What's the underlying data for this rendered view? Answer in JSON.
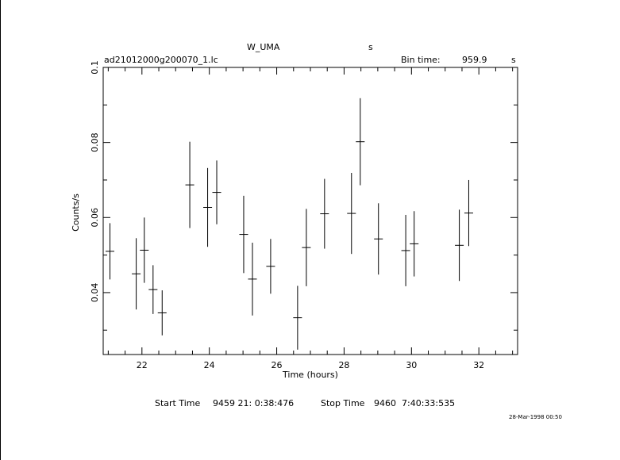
{
  "header": {
    "object": "W_UMA",
    "object_unit": "s",
    "filename": "ad21012000g200070_1.lc",
    "bin_time_label": "Bin time:",
    "bin_time_value": "959.9",
    "bin_time_unit": "s"
  },
  "footer": {
    "start_label": "Start Time",
    "start_value": "9459 21: 0:38:476",
    "stop_label": "Stop Time",
    "stop_value": "9460  7:40:33:535",
    "date_stamp": "28-Mar-1998 00:50"
  },
  "chart_data": {
    "type": "scatter",
    "xlabel": "Time (hours)",
    "ylabel": "Counts/s",
    "xlim": [
      20.85,
      33.15
    ],
    "ylim": [
      0.0235,
      0.1
    ],
    "x_ticks": [
      22,
      24,
      26,
      28,
      30,
      32
    ],
    "x_tick_labels": [
      "22",
      "24",
      "26",
      "28",
      "30",
      "32"
    ],
    "y_ticks": [
      0.04,
      0.06,
      0.08,
      0.1
    ],
    "y_tick_labels": [
      "0.04",
      "0.06",
      "0.08",
      "0.1"
    ],
    "grid": false,
    "points": [
      {
        "x": 21.05,
        "xerr": 0.13,
        "y": 0.051,
        "yerr": 0.0075
      },
      {
        "x": 21.83,
        "xerr": 0.13,
        "y": 0.045,
        "yerr": 0.0095
      },
      {
        "x": 22.07,
        "xerr": 0.13,
        "y": 0.0513,
        "yerr": 0.0087
      },
      {
        "x": 22.33,
        "xerr": 0.13,
        "y": 0.0408,
        "yerr": 0.0065
      },
      {
        "x": 22.6,
        "xerr": 0.13,
        "y": 0.0346,
        "yerr": 0.006
      },
      {
        "x": 23.42,
        "xerr": 0.13,
        "y": 0.0687,
        "yerr": 0.0115
      },
      {
        "x": 23.95,
        "xerr": 0.13,
        "y": 0.0627,
        "yerr": 0.0105
      },
      {
        "x": 24.22,
        "xerr": 0.13,
        "y": 0.0667,
        "yerr": 0.0085
      },
      {
        "x": 25.02,
        "xerr": 0.13,
        "y": 0.0555,
        "yerr": 0.0103
      },
      {
        "x": 25.28,
        "xerr": 0.13,
        "y": 0.0436,
        "yerr": 0.0097
      },
      {
        "x": 25.82,
        "xerr": 0.13,
        "y": 0.047,
        "yerr": 0.0073
      },
      {
        "x": 26.62,
        "xerr": 0.13,
        "y": 0.0333,
        "yerr": 0.0085
      },
      {
        "x": 26.88,
        "xerr": 0.13,
        "y": 0.052,
        "yerr": 0.0103
      },
      {
        "x": 27.42,
        "xerr": 0.13,
        "y": 0.061,
        "yerr": 0.0093
      },
      {
        "x": 28.22,
        "xerr": 0.13,
        "y": 0.0611,
        "yerr": 0.0108
      },
      {
        "x": 28.48,
        "xerr": 0.13,
        "y": 0.0802,
        "yerr": 0.0116
      },
      {
        "x": 29.02,
        "xerr": 0.13,
        "y": 0.0543,
        "yerr": 0.0095
      },
      {
        "x": 29.83,
        "xerr": 0.13,
        "y": 0.0512,
        "yerr": 0.0095
      },
      {
        "x": 30.08,
        "xerr": 0.13,
        "y": 0.053,
        "yerr": 0.0087
      },
      {
        "x": 31.42,
        "xerr": 0.13,
        "y": 0.0526,
        "yerr": 0.0095
      },
      {
        "x": 31.7,
        "xerr": 0.13,
        "y": 0.0612,
        "yerr": 0.0088
      }
    ]
  }
}
